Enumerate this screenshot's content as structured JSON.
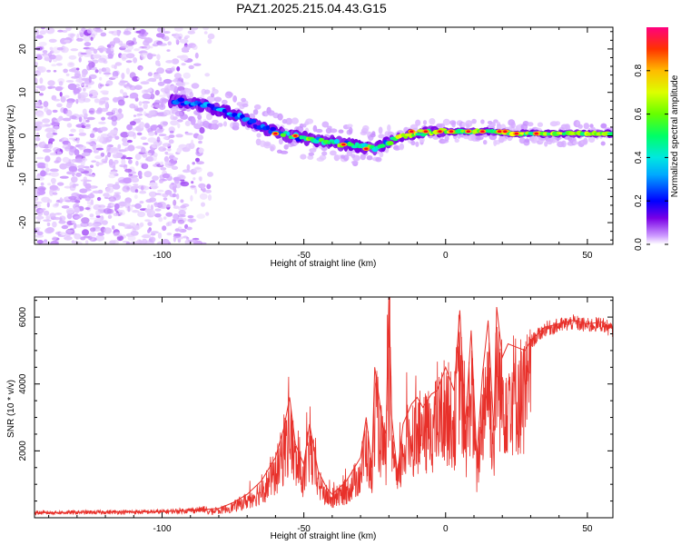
{
  "title": "PAZ1.2025.215.04.43.G15",
  "chart_data": [
    {
      "type": "heatmap",
      "xlabel": "Height of straight line (km)",
      "ylabel": "Frequency (Hz)",
      "xlim": [
        -145,
        59
      ],
      "ylim": [
        -25,
        25
      ],
      "xticks": [
        -100,
        -50,
        0,
        50
      ],
      "yticks": [
        -20,
        -10,
        0,
        10,
        20
      ],
      "colorbar": {
        "label": "Normalized spectral amplitude",
        "range": [
          0.0,
          1.0
        ],
        "ticks": [
          0.0,
          0.2,
          0.4,
          0.6,
          0.8
        ],
        "tick_labels": [
          "0.0",
          "0.2",
          "0.4",
          "0.6",
          "0.8"
        ],
        "colormap": [
          "#ffffff",
          "#cc99ff",
          "#7a00e6",
          "#0000ff",
          "#00e0ff",
          "#00ff66",
          "#66ff00",
          "#ffff00",
          "#ff9900",
          "#ff0000",
          "#ff007f"
        ]
      },
      "ridge": {
        "x": [
          -95,
          -85,
          -75,
          -65,
          -55,
          -45,
          -35,
          -25,
          -15,
          -5,
          5,
          15,
          25,
          35,
          45,
          59
        ],
        "freq": [
          8,
          7,
          5,
          2,
          0,
          -1,
          -2,
          -3,
          0,
          1,
          1,
          1,
          0.5,
          0.5,
          0.5,
          0.5
        ]
      },
      "noise_region_x": [
        -145,
        -80
      ]
    },
    {
      "type": "line",
      "xlabel": "Height of straight line (km)",
      "ylabel": "SNR (10 * v/v)",
      "xlim": [
        -145,
        59
      ],
      "ylim": [
        0,
        6600
      ],
      "xticks": [
        -100,
        -50,
        0,
        50
      ],
      "yticks": [
        2000,
        4000,
        6000
      ],
      "color": "#e8302a",
      "x": [
        -145,
        -130,
        -115,
        -100,
        -90,
        -80,
        -75,
        -70,
        -65,
        -60,
        -57,
        -55,
        -53,
        -50,
        -48,
        -45,
        -42,
        -40,
        -35,
        -30,
        -28,
        -26,
        -25,
        -22,
        -21,
        -20,
        -19,
        -17,
        -15,
        -12,
        -10,
        -8,
        -5,
        -3,
        0,
        3,
        5,
        7,
        9,
        11,
        13,
        15,
        17,
        18,
        20,
        22,
        25,
        28,
        30,
        35,
        40,
        45,
        50,
        55,
        59
      ],
      "y": [
        150,
        160,
        170,
        180,
        220,
        280,
        450,
        700,
        1100,
        1800,
        2700,
        3600,
        2200,
        1600,
        2800,
        1400,
        900,
        700,
        1100,
        1800,
        3000,
        1500,
        4500,
        2700,
        2500,
        6600,
        3000,
        1300,
        2800,
        3400,
        3600,
        3300,
        3700,
        3800,
        4500,
        3800,
        6200,
        2800,
        5600,
        1800,
        4300,
        5900,
        2600,
        6300,
        4800,
        5200,
        5100,
        5000,
        5300,
        5700,
        5800,
        5900,
        5800,
        5850,
        5650
      ]
    }
  ]
}
